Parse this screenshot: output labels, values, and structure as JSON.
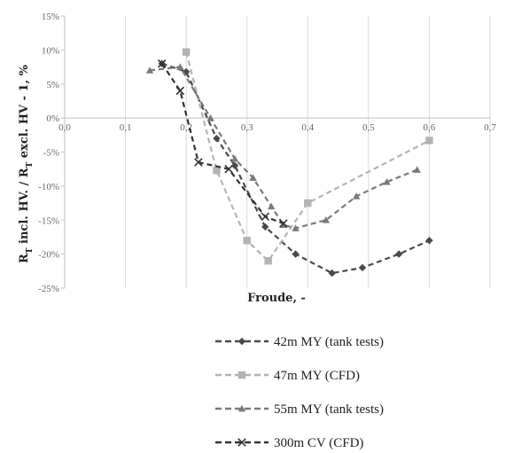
{
  "chart_data": {
    "type": "line",
    "title": "",
    "xlabel": "Froude, -",
    "ylabel": "R_T incl. HV. / R_T excl. HV - 1, %",
    "ylabel_parts": {
      "r1": "R",
      "sub1": "T",
      "mid": " incl. HV. / R",
      "sub2": "T",
      "end": " excl. HV - 1, %"
    },
    "xlim": [
      0,
      0.7
    ],
    "ylim": [
      -25,
      15
    ],
    "x_ticks": [
      "0,0",
      "0,1",
      "0,2",
      "0,3",
      "0,4",
      "0,5",
      "0,6",
      "0,7"
    ],
    "y_ticks": [
      "15%",
      "10%",
      "5%",
      "0%",
      "-5%",
      "-10%",
      "-15%",
      "-20%",
      "-25%"
    ],
    "grid": "vertical",
    "legend_position": "bottom",
    "series": [
      {
        "name": "42m MY (tank tests)",
        "marker": "diamond",
        "color": "#4a4a4a",
        "x": [
          0.16,
          0.2,
          0.25,
          0.28,
          0.33,
          0.38,
          0.44,
          0.49,
          0.55,
          0.6
        ],
        "y": [
          8.0,
          6.8,
          -3.0,
          -7.0,
          -16.0,
          -20.0,
          -22.8,
          -22.0,
          -20.0,
          -18.0
        ]
      },
      {
        "name": "47m MY (CFD)",
        "marker": "square",
        "color": "#b3b3b3",
        "x": [
          0.2,
          0.25,
          0.3,
          0.335,
          0.4,
          0.6
        ],
        "y": [
          9.7,
          -7.7,
          -18.0,
          -21.0,
          -12.5,
          -3.3
        ]
      },
      {
        "name": "55m MY (tank tests)",
        "marker": "triangle",
        "color": "#7a7a7a",
        "x": [
          0.14,
          0.19,
          0.24,
          0.28,
          0.31,
          0.34,
          0.36,
          0.38,
          0.43,
          0.48,
          0.53,
          0.58
        ],
        "y": [
          7.0,
          7.5,
          0.0,
          -6.0,
          -8.8,
          -13.0,
          -15.7,
          -16.2,
          -15.0,
          -11.5,
          -9.4,
          -7.6
        ]
      },
      {
        "name": "300m CV (CFD)",
        "marker": "x",
        "color": "#333333",
        "x": [
          0.16,
          0.19,
          0.22,
          0.27,
          0.33,
          0.36
        ],
        "y": [
          8.0,
          4.0,
          -6.5,
          -7.5,
          -14.5,
          -15.5
        ]
      }
    ]
  }
}
